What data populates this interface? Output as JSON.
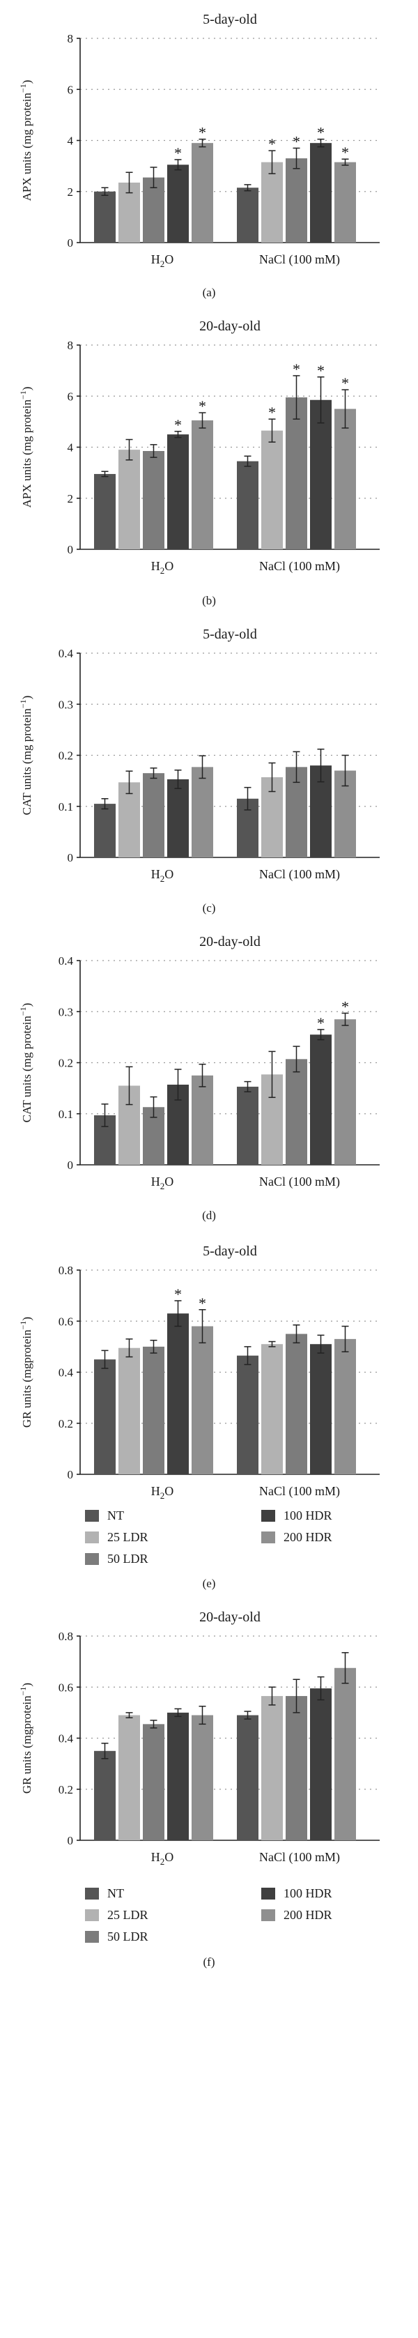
{
  "legend_labels": [
    "NT",
    "25 LDR",
    "50 LDR",
    "100 HDR",
    "200 HDR"
  ],
  "series_colors": [
    "#555555",
    "#b2b2b2",
    "#7c7c7c",
    "#3f3f3f",
    "#8f8f8f"
  ],
  "chart_data": [
    {
      "type": "bar",
      "panel_label": "(a)",
      "title": "5-day-old",
      "ylabel_main": "APX units (mg protein",
      "ylabel_sup": "−1",
      "ylabel_close": ")",
      "ylim": [
        0,
        8
      ],
      "yticks": [
        "0",
        "2",
        "4",
        "6",
        "8"
      ],
      "ytick_values": [
        0,
        2,
        4,
        6,
        8
      ],
      "groups": [
        "H2O",
        "NaCl (100 mM)"
      ],
      "series": [
        {
          "name": "NT",
          "values": [
            2.0,
            2.15
          ],
          "errors": [
            0.15,
            0.12
          ],
          "significant": [
            false,
            false
          ]
        },
        {
          "name": "25 LDR",
          "values": [
            2.35,
            3.15
          ],
          "errors": [
            0.4,
            0.45
          ],
          "significant": [
            false,
            true
          ]
        },
        {
          "name": "50 LDR",
          "values": [
            2.55,
            3.3
          ],
          "errors": [
            0.4,
            0.4
          ],
          "significant": [
            false,
            true
          ]
        },
        {
          "name": "100 HDR",
          "values": [
            3.05,
            3.9
          ],
          "errors": [
            0.2,
            0.15
          ],
          "significant": [
            true,
            true
          ]
        },
        {
          "name": "200 HDR",
          "values": [
            3.9,
            3.15
          ],
          "errors": [
            0.15,
            0.12
          ],
          "significant": [
            true,
            true
          ]
        }
      ],
      "asterisk": "*",
      "show_legend": false
    },
    {
      "type": "bar",
      "panel_label": "(b)",
      "title": "20-day-old",
      "ylabel_main": "APX units (mg protein",
      "ylabel_sup": "−1",
      "ylabel_close": ")",
      "ylim": [
        0,
        8
      ],
      "yticks": [
        "0",
        "2",
        "4",
        "6",
        "8"
      ],
      "ytick_values": [
        0,
        2,
        4,
        6,
        8
      ],
      "groups": [
        "H2O",
        "NaCl (100 mM)"
      ],
      "series": [
        {
          "name": "NT",
          "values": [
            2.95,
            3.45
          ],
          "errors": [
            0.1,
            0.2
          ],
          "significant": [
            false,
            false
          ]
        },
        {
          "name": "25 LDR",
          "values": [
            3.9,
            4.65
          ],
          "errors": [
            0.4,
            0.45
          ],
          "significant": [
            false,
            true
          ]
        },
        {
          "name": "50 LDR",
          "values": [
            3.85,
            5.95
          ],
          "errors": [
            0.25,
            0.85
          ],
          "significant": [
            false,
            true
          ]
        },
        {
          "name": "100 HDR",
          "values": [
            4.5,
            5.85
          ],
          "errors": [
            0.12,
            0.9
          ],
          "significant": [
            true,
            true
          ]
        },
        {
          "name": "200 HDR",
          "values": [
            5.05,
            5.5
          ],
          "errors": [
            0.3,
            0.75
          ],
          "significant": [
            true,
            true
          ]
        }
      ],
      "asterisk": "*",
      "show_legend": false
    },
    {
      "type": "bar",
      "panel_label": "(c)",
      "title": "5-day-old",
      "ylabel_main": "CAT units (mg protein",
      "ylabel_sup": "−1",
      "ylabel_close": ")",
      "ylim": [
        0,
        0.4
      ],
      "yticks": [
        "0",
        "0.1",
        "0.2",
        "0.3",
        "0.4"
      ],
      "ytick_values": [
        0,
        0.1,
        0.2,
        0.3,
        0.4
      ],
      "groups": [
        "H2O",
        "NaCl (100 mM)"
      ],
      "series": [
        {
          "name": "NT",
          "values": [
            0.105,
            0.115
          ],
          "errors": [
            0.01,
            0.022
          ],
          "significant": [
            false,
            false
          ]
        },
        {
          "name": "25 LDR",
          "values": [
            0.147,
            0.157
          ],
          "errors": [
            0.022,
            0.028
          ],
          "significant": [
            false,
            false
          ]
        },
        {
          "name": "50 LDR",
          "values": [
            0.165,
            0.177
          ],
          "errors": [
            0.01,
            0.03
          ],
          "significant": [
            false,
            false
          ]
        },
        {
          "name": "100 HDR",
          "values": [
            0.153,
            0.18
          ],
          "errors": [
            0.018,
            0.032
          ],
          "significant": [
            false,
            false
          ]
        },
        {
          "name": "200 HDR",
          "values": [
            0.177,
            0.17
          ],
          "errors": [
            0.022,
            0.03
          ],
          "significant": [
            false,
            false
          ]
        }
      ],
      "asterisk": "*",
      "show_legend": false
    },
    {
      "type": "bar",
      "panel_label": "(d)",
      "title": "20-day-old",
      "ylabel_main": "CAT units (mg protein",
      "ylabel_sup": "−1",
      "ylabel_close": ")",
      "ylim": [
        0,
        0.4
      ],
      "yticks": [
        "0",
        "0.1",
        "0.2",
        "0.3",
        "0.4"
      ],
      "ytick_values": [
        0,
        0.1,
        0.2,
        0.3,
        0.4
      ],
      "groups": [
        "H2O",
        "NaCl (100 mM)"
      ],
      "series": [
        {
          "name": "NT",
          "values": [
            0.097,
            0.153
          ],
          "errors": [
            0.022,
            0.01
          ],
          "significant": [
            false,
            false
          ]
        },
        {
          "name": "25 LDR",
          "values": [
            0.155,
            0.177
          ],
          "errors": [
            0.037,
            0.045
          ],
          "significant": [
            false,
            false
          ]
        },
        {
          "name": "50 LDR",
          "values": [
            0.113,
            0.207
          ],
          "errors": [
            0.02,
            0.025
          ],
          "significant": [
            false,
            false
          ]
        },
        {
          "name": "100 HDR",
          "values": [
            0.157,
            0.255
          ],
          "errors": [
            0.03,
            0.01
          ],
          "significant": [
            false,
            true
          ]
        },
        {
          "name": "200 HDR",
          "values": [
            0.175,
            0.285
          ],
          "errors": [
            0.022,
            0.012
          ],
          "significant": [
            false,
            true
          ]
        }
      ],
      "asterisk": "*",
      "show_legend": false
    },
    {
      "type": "bar",
      "panel_label": "(e)",
      "title": "5-day-old",
      "ylabel_main": "GR units (mgprotein",
      "ylabel_sup": "−1",
      "ylabel_close": ")",
      "ylim": [
        0,
        0.8
      ],
      "yticks": [
        "0",
        "0.2",
        "0.4",
        "0.6",
        "0.8"
      ],
      "ytick_values": [
        0,
        0.2,
        0.4,
        0.6,
        0.8
      ],
      "groups": [
        "H2O",
        "NaCl (100 mM)"
      ],
      "series": [
        {
          "name": "NT",
          "values": [
            0.45,
            0.465
          ],
          "errors": [
            0.035,
            0.035
          ],
          "significant": [
            false,
            false
          ]
        },
        {
          "name": "25 LDR",
          "values": [
            0.495,
            0.51
          ],
          "errors": [
            0.035,
            0.01
          ],
          "significant": [
            false,
            false
          ]
        },
        {
          "name": "50 LDR",
          "values": [
            0.5,
            0.55
          ],
          "errors": [
            0.025,
            0.035
          ],
          "significant": [
            false,
            false
          ]
        },
        {
          "name": "100 HDR",
          "values": [
            0.63,
            0.51
          ],
          "errors": [
            0.05,
            0.035
          ],
          "significant": [
            true,
            false
          ]
        },
        {
          "name": "200 HDR",
          "values": [
            0.58,
            0.53
          ],
          "errors": [
            0.065,
            0.05
          ],
          "significant": [
            true,
            false
          ]
        }
      ],
      "asterisk": "*",
      "show_legend": true
    },
    {
      "type": "bar",
      "panel_label": "(f)",
      "title": "20-day-old",
      "ylabel_main": "GR units (mgprotein",
      "ylabel_sup": "−1",
      "ylabel_close": ")",
      "ylim": [
        0,
        0.8
      ],
      "yticks": [
        "0",
        "0.2",
        "0.4",
        "0.6",
        "0.8"
      ],
      "ytick_values": [
        0,
        0.2,
        0.4,
        0.6,
        0.8
      ],
      "groups": [
        "H2O",
        "NaCl (100 mM)"
      ],
      "series": [
        {
          "name": "NT",
          "values": [
            0.35,
            0.49
          ],
          "errors": [
            0.03,
            0.015
          ],
          "significant": [
            false,
            false
          ]
        },
        {
          "name": "25 LDR",
          "values": [
            0.49,
            0.565
          ],
          "errors": [
            0.01,
            0.035
          ],
          "significant": [
            false,
            false
          ]
        },
        {
          "name": "50 LDR",
          "values": [
            0.455,
            0.565
          ],
          "errors": [
            0.015,
            0.065
          ],
          "significant": [
            false,
            false
          ]
        },
        {
          "name": "100 HDR",
          "values": [
            0.5,
            0.595
          ],
          "errors": [
            0.015,
            0.045
          ],
          "significant": [
            false,
            false
          ]
        },
        {
          "name": "200 HDR",
          "values": [
            0.49,
            0.675
          ],
          "errors": [
            0.035,
            0.06
          ],
          "significant": [
            false,
            false
          ]
        }
      ],
      "asterisk": "*",
      "show_legend": true
    }
  ]
}
